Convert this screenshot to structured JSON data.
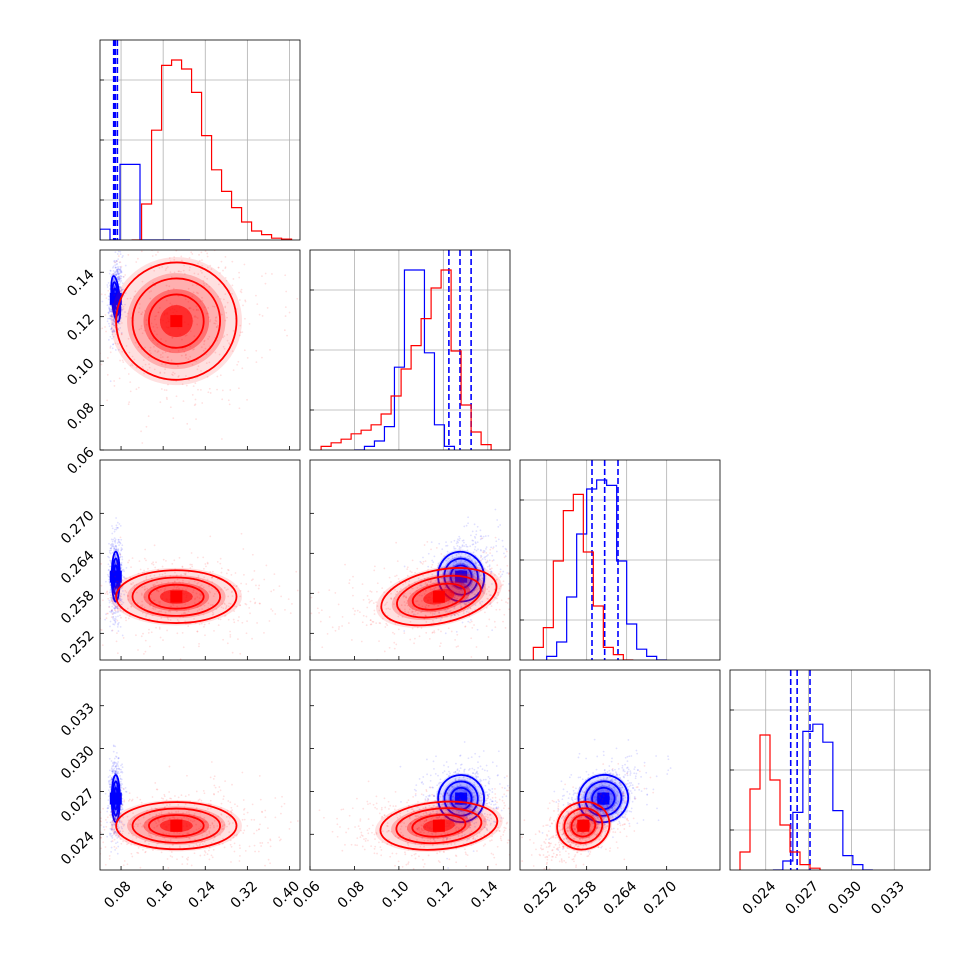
{
  "chart_data": {
    "type": "corner",
    "grid": true,
    "params": [
      {
        "range": [
          0.04,
          0.42
        ],
        "ticks": [
          0.08,
          0.16,
          0.24,
          0.32,
          0.4
        ],
        "tick_labels": [
          "0.08",
          "0.16",
          "0.24",
          "0.32",
          "0.40"
        ]
      },
      {
        "range": [
          0.06,
          0.15
        ],
        "ticks": [
          0.06,
          0.08,
          0.1,
          0.12,
          0.14
        ],
        "tick_labels": [
          "0.06",
          "0.08",
          "0.10",
          "0.12",
          "0.14"
        ]
      },
      {
        "range": [
          0.248,
          0.278
        ],
        "ticks": [
          0.252,
          0.258,
          0.264,
          0.27
        ],
        "tick_labels": [
          "0.252",
          "0.258",
          "0.264",
          "0.270"
        ]
      },
      {
        "range": [
          0.0215,
          0.0355
        ],
        "ticks": [
          0.024,
          0.027,
          0.03,
          0.033
        ],
        "tick_labels": [
          "0.024",
          "0.027",
          "0.030",
          "0.033"
        ]
      }
    ],
    "series": [
      {
        "color": "#0000ff",
        "means": [
          0.07,
          0.128,
          0.2605,
          0.0265
        ],
        "sigmas": [
          0.0035,
          0.0047,
          0.0017,
          0.00075
        ],
        "quantiles": [
          [
            0.066,
            0.069,
            0.073
          ],
          [
            0.1225,
            0.1275,
            0.1325
          ],
          [
            0.2588,
            0.2607,
            0.2627
          ],
          [
            0.02575,
            0.0262,
            0.0271
          ]
        ],
        "hist_1d": [
          [
            0.04,
            0.06,
            0.0,
            0.42,
            0.42,
            0.0,
            0.0,
            0.0,
            0.0,
            0.0
          ],
          [
            0.08,
            0.0,
            0.02,
            0.05,
            0.13,
            0.46,
            1.0,
            1.0,
            0.54,
            0.14,
            0.02
          ],
          [
            0.252,
            0.02,
            0.1,
            0.35,
            0.7,
            0.95,
            1.0,
            0.97,
            0.55,
            0.2,
            0.06,
            0.02,
            0.0
          ],
          [
            0.0245,
            0.0,
            0.05,
            0.32,
            0.77,
            0.81,
            0.71,
            0.33,
            0.08,
            0.03,
            0.0
          ]
        ]
      },
      {
        "color": "#ff0000",
        "means": [
          0.185,
          0.118,
          0.2575,
          0.0246
        ],
        "sigmas": [
          0.052,
          0.012,
          0.0018,
          0.00075
        ],
        "quantiles": [],
        "hist_1d": [
          [
            0.1,
            0.0,
            0.2,
            0.61,
            0.97,
            1.0,
            0.95,
            0.82,
            0.58,
            0.39,
            0.27,
            0.18,
            0.1,
            0.05,
            0.03,
            0.01,
            0.005
          ],
          [
            0.065,
            0.02,
            0.04,
            0.06,
            0.09,
            0.11,
            0.14,
            0.2,
            0.3,
            0.45,
            0.58,
            0.73,
            0.9,
            1.0,
            0.55,
            0.25,
            0.1,
            0.03
          ],
          [
            0.25,
            0.07,
            0.18,
            0.55,
            0.83,
            0.92,
            0.6,
            0.3,
            0.07,
            0.03,
            0.0
          ],
          [
            0.0222,
            0.1,
            0.45,
            0.75,
            0.5,
            0.25,
            0.1,
            0.03,
            0.01
          ]
        ]
      }
    ]
  }
}
